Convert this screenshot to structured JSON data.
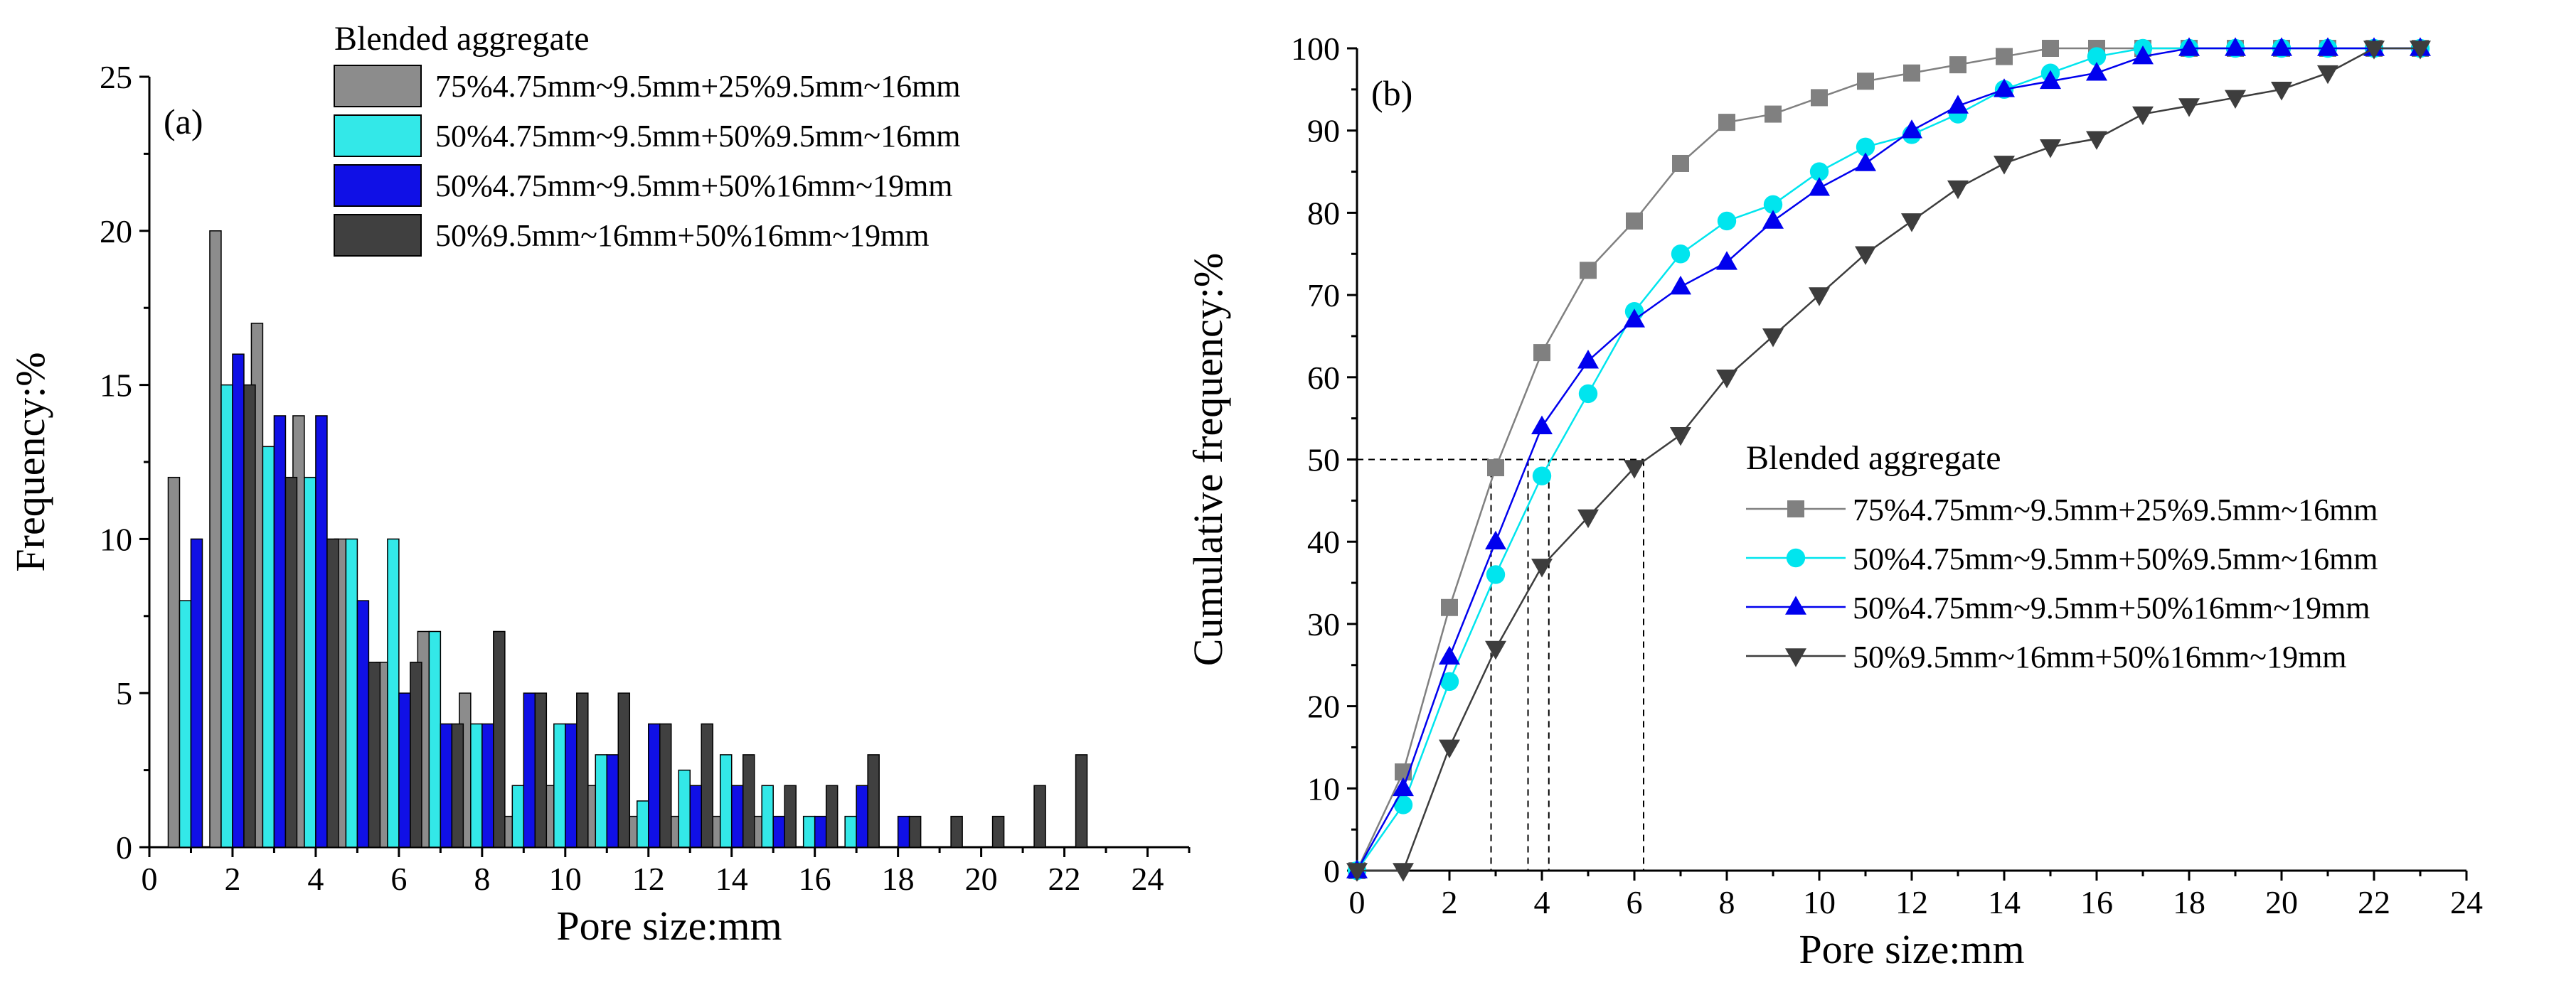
{
  "chart_data": [
    {
      "type": "bar",
      "panel_label": "(a)",
      "title": "",
      "xlabel": "Pore size:mm",
      "ylabel": "Frequency:%",
      "xlim": [
        0,
        25
      ],
      "ylim": [
        0,
        25
      ],
      "x_ticks": [
        0,
        2,
        4,
        6,
        8,
        10,
        12,
        14,
        16,
        18,
        20,
        22,
        24
      ],
      "y_ticks": [
        0,
        5,
        10,
        15,
        20,
        25
      ],
      "legend_title": "Blended aggregate",
      "legend_position": "top-right",
      "categories": [
        1,
        2,
        3,
        4,
        5,
        6,
        7,
        8,
        9,
        10,
        11,
        12,
        13,
        14,
        15,
        16,
        17,
        18,
        19,
        20,
        21,
        22
      ],
      "series": [
        {
          "name": "75%4.75mm~9.5mm+25%9.5mm~16mm",
          "color": "#8c8c8c",
          "values": [
            12,
            20,
            17,
            14,
            10,
            6,
            7,
            5,
            1,
            2,
            2,
            1,
            1,
            1,
            1,
            0,
            0,
            0,
            0,
            0,
            0,
            0
          ]
        },
        {
          "name": "50%4.75mm~9.5mm+50%9.5mm~16mm",
          "color": "#33e8e8",
          "values": [
            8,
            15,
            13,
            12,
            10,
            10,
            7,
            4,
            2,
            4,
            3,
            1.5,
            2.5,
            3,
            2,
            1,
            1,
            0,
            0,
            0,
            0,
            0
          ]
        },
        {
          "name": "50%4.75mm~9.5mm+50%16mm~19mm",
          "color": "#1010e6",
          "values": [
            10,
            16,
            14,
            14,
            8,
            5,
            4,
            4,
            5,
            4,
            3,
            4,
            2,
            2,
            1,
            1,
            2,
            1,
            0,
            0,
            0,
            0
          ]
        },
        {
          "name": "50%9.5mm~16mm+50%16mm~19mm",
          "color": "#404040",
          "values": [
            0,
            15,
            12,
            10,
            6,
            6,
            4,
            7,
            5,
            5,
            5,
            4,
            4,
            3,
            2,
            2,
            3,
            1,
            1,
            1,
            2,
            3
          ]
        }
      ]
    },
    {
      "type": "line",
      "panel_label": "(b)",
      "title": "",
      "xlabel": "Pore size:mm",
      "ylabel": "Cumulative frequency:%",
      "xlim": [
        0,
        24
      ],
      "ylim": [
        0,
        100
      ],
      "x_ticks": [
        0,
        2,
        4,
        6,
        8,
        10,
        12,
        14,
        16,
        18,
        20,
        22,
        24
      ],
      "y_ticks": [
        0,
        10,
        20,
        30,
        40,
        50,
        60,
        70,
        80,
        90,
        100
      ],
      "legend_title": "Blended aggregate",
      "legend_position": "center-right",
      "x": [
        0,
        1,
        2,
        3,
        4,
        5,
        6,
        7,
        8,
        9,
        10,
        11,
        12,
        13,
        14,
        15,
        16,
        17,
        18,
        19,
        20,
        21,
        22,
        23
      ],
      "series": [
        {
          "name": "75%4.75mm~9.5mm+25%9.5mm~16mm",
          "color": "#808080",
          "marker": "square",
          "values": [
            0,
            12,
            32,
            49,
            63,
            73,
            79,
            86,
            91,
            92,
            94,
            96,
            97,
            98,
            99,
            100,
            100,
            100,
            100,
            100,
            100,
            100,
            100,
            100
          ]
        },
        {
          "name": "50%4.75mm~9.5mm+50%9.5mm~16mm",
          "color": "#00e5ee",
          "marker": "circle",
          "values": [
            0,
            8,
            23,
            36,
            48,
            58,
            68,
            75,
            79,
            81,
            85,
            88,
            89.5,
            92,
            95,
            97,
            99,
            100,
            100,
            100,
            100,
            100,
            100,
            100
          ]
        },
        {
          "name": "50%4.75mm~9.5mm+50%16mm~19mm",
          "color": "#0000ee",
          "marker": "triangle-up",
          "values": [
            0,
            10,
            26,
            40,
            54,
            62,
            67,
            71,
            74,
            79,
            83,
            86,
            90,
            93,
            95,
            96,
            97,
            99,
            100,
            100,
            100,
            100,
            100,
            100
          ]
        },
        {
          "name": "50%9.5mm~16mm+50%16mm~19mm",
          "color": "#3d3d3d",
          "marker": "triangle-down",
          "values": [
            0,
            0,
            15,
            27,
            37,
            43,
            49,
            53,
            60,
            65,
            70,
            75,
            79,
            83,
            86,
            88,
            89,
            92,
            93,
            94,
            95,
            97,
            100,
            100
          ]
        }
      ],
      "reference_lines": {
        "y": 50,
        "x_values": [
          2.9,
          3.7,
          4.15,
          6.2
        ]
      }
    }
  ]
}
